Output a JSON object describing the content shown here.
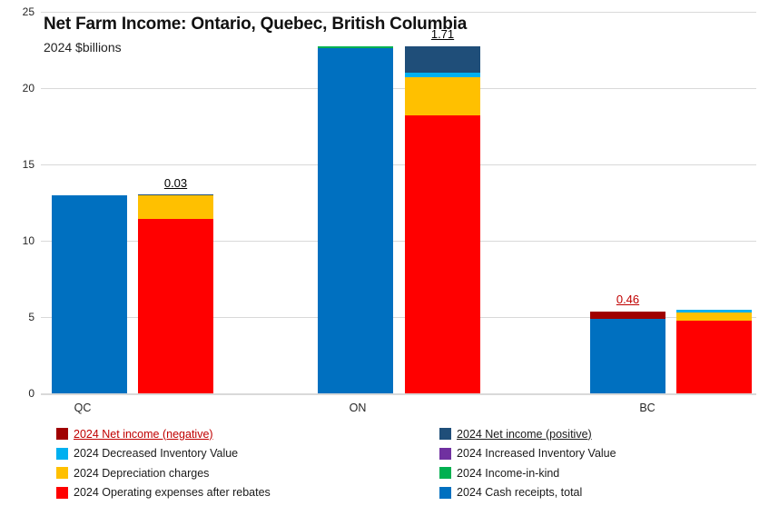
{
  "chart_data": {
    "type": "bar",
    "variant": "paired-stacked-balance",
    "title": "Net Farm Income: Ontario, Quebec, British Columbia",
    "subtitle": "2024 $billions",
    "xlabel": "",
    "ylabel": "",
    "ylim": [
      0,
      25
    ],
    "yticks": [
      0,
      5,
      10,
      15,
      20,
      25
    ],
    "grid": "horizontal",
    "categories": [
      "QC",
      "ON",
      "BC"
    ],
    "groups": [
      {
        "category": "QC",
        "bars": [
          {
            "role": "sources",
            "segments": [
              {
                "series": "2024 Cash receipts, total",
                "value": 13.0
              }
            ]
          },
          {
            "role": "uses",
            "segments": [
              {
                "series": "2024 Operating expenses after rebates",
                "value": 11.4
              },
              {
                "series": "2024 Depreciation charges",
                "value": 1.57
              },
              {
                "series": "2024 Net income (positive)",
                "value": 0.03
              }
            ]
          }
        ],
        "annotation": {
          "text": "0.03",
          "bar_index": 1,
          "color": "#000000",
          "underline": true
        }
      },
      {
        "category": "ON",
        "bars": [
          {
            "role": "sources",
            "segments": [
              {
                "series": "2024 Cash receipts, total",
                "value": 22.6
              },
              {
                "series": "2024 Income-in-kind",
                "value": 0.15
              }
            ]
          },
          {
            "role": "uses",
            "segments": [
              {
                "series": "2024 Operating expenses after rebates",
                "value": 18.2
              },
              {
                "series": "2024 Depreciation charges",
                "value": 2.5
              },
              {
                "series": "2024 Decreased Inventory Value",
                "value": 0.3
              },
              {
                "series": "2024 Net income (positive)",
                "value": 1.71
              }
            ]
          }
        ],
        "annotation": {
          "text": "1.71",
          "bar_index": 1,
          "color": "#000000",
          "underline": true
        }
      },
      {
        "category": "BC",
        "bars": [
          {
            "role": "sources",
            "segments": [
              {
                "series": "2024 Cash receipts, total",
                "value": 4.9
              },
              {
                "series": "2024 Net income (negative)",
                "value": 0.46
              }
            ]
          },
          {
            "role": "uses",
            "segments": [
              {
                "series": "2024 Operating expenses after rebates",
                "value": 4.75
              },
              {
                "series": "2024 Depreciation charges",
                "value": 0.55
              },
              {
                "series": "2024 Decreased Inventory Value",
                "value": 0.16
              }
            ]
          }
        ],
        "annotation": {
          "text": "0.46",
          "bar_index": 0,
          "color": "#C00000",
          "underline": true
        }
      }
    ]
  },
  "legend": {
    "position": "bottom",
    "columns": [
      {
        "items": [
          {
            "label": "2024 Net income (negative)",
            "color": "#A00000",
            "text_color": "#C00000",
            "underline": true
          },
          {
            "label": "2024 Decreased Inventory Value",
            "color": "#00B0F0",
            "text_color": "#1a1a1a",
            "underline": false
          },
          {
            "label": "2024 Depreciation charges",
            "color": "#FFC000",
            "text_color": "#1a1a1a",
            "underline": false
          },
          {
            "label": "2024 Operating expenses after rebates",
            "color": "#FF0000",
            "text_color": "#1a1a1a",
            "underline": false
          }
        ]
      },
      {
        "items": [
          {
            "label": "2024 Net income (positive)",
            "color": "#1F4E79",
            "text_color": "#1a1a1a",
            "underline": true
          },
          {
            "label": "2024 Increased Inventory Value",
            "color": "#7030A0",
            "text_color": "#1a1a1a",
            "underline": false
          },
          {
            "label": "2024 Income-in-kind",
            "color": "#00B050",
            "text_color": "#1a1a1a",
            "underline": false
          },
          {
            "label": "2024 Cash receipts, total",
            "color": "#0070C0",
            "text_color": "#1a1a1a",
            "underline": false
          }
        ]
      }
    ]
  },
  "series_colors": {
    "2024 Net income (negative)": "#A00000",
    "2024 Net income (positive)": "#1F4E79",
    "2024 Decreased Inventory Value": "#00B0F0",
    "2024 Increased Inventory Value": "#7030A0",
    "2024 Depreciation charges": "#FFC000",
    "2024 Income-in-kind": "#00B050",
    "2024 Operating expenses after rebates": "#FF0000",
    "2024 Cash receipts, total": "#0070C0"
  },
  "style_colors": {
    "gridline": "#D9D9D9",
    "background": "#FFFFFF",
    "tick_text": "#262626"
  }
}
